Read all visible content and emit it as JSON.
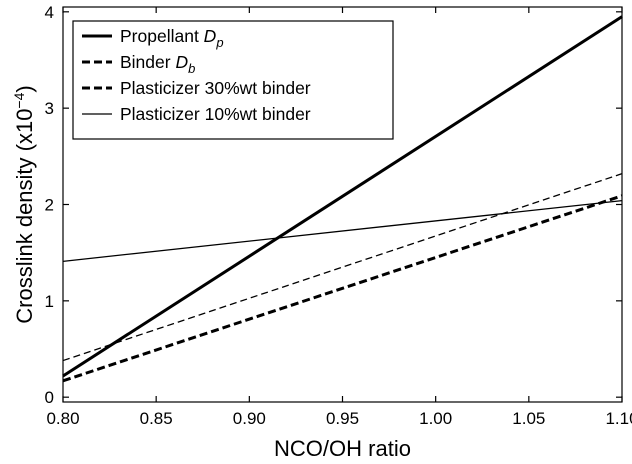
{
  "chart_data": {
    "type": "line",
    "title": "",
    "xlabel": "NCO/OH ratio",
    "ylabel": {
      "main": "Crosslink density (x10",
      "exponent": "−4",
      "close": ")"
    },
    "xlim": [
      0.8,
      1.1
    ],
    "ylim": [
      -0.05,
      4.05
    ],
    "x_ticks": [
      {
        "value": 0.8,
        "label": "0.80"
      },
      {
        "value": 0.85,
        "label": "0.85"
      },
      {
        "value": 0.9,
        "label": "0.90"
      },
      {
        "value": 0.95,
        "label": "0.95"
      },
      {
        "value": 1.0,
        "label": "1.00"
      },
      {
        "value": 1.05,
        "label": "1.05"
      },
      {
        "value": 1.1,
        "label": "1.10"
      }
    ],
    "y_ticks": [
      {
        "value": 0,
        "label": "0"
      },
      {
        "value": 1,
        "label": "1"
      },
      {
        "value": 2,
        "label": "2"
      },
      {
        "value": 3,
        "label": "3"
      },
      {
        "value": 4,
        "label": "4"
      }
    ],
    "grid": false,
    "legend_position": "top-left",
    "series": [
      {
        "label": {
          "text": "Propellant ",
          "italic": "D",
          "sub": "p"
        },
        "style": "solid",
        "stroke_width": 3,
        "x": [
          0.8,
          1.1
        ],
        "y": [
          0.22,
          3.95
        ]
      },
      {
        "label": {
          "text": "Binder ",
          "italic": "D",
          "sub": "b"
        },
        "style": "dashed-thin",
        "stroke_width": 1.3,
        "x": [
          0.8,
          1.1
        ],
        "y": [
          0.38,
          2.32
        ]
      },
      {
        "label": {
          "text": "Plasticizer 30%wt binder",
          "italic": "",
          "sub": ""
        },
        "style": "dashed-thick",
        "stroke_width": 3,
        "x": [
          0.8,
          1.1
        ],
        "y": [
          0.17,
          2.09
        ]
      },
      {
        "label": {
          "text": "Plasticizer 10%wt binder",
          "italic": "",
          "sub": ""
        },
        "style": "solid-thin",
        "stroke_width": 1.3,
        "x": [
          0.8,
          1.1
        ],
        "y": [
          1.41,
          2.04
        ]
      }
    ],
    "legend_order": [
      0,
      2,
      2,
      3
    ],
    "colors": {
      "line": "#000000",
      "frame": "#000000",
      "background": "#ffffff"
    }
  }
}
